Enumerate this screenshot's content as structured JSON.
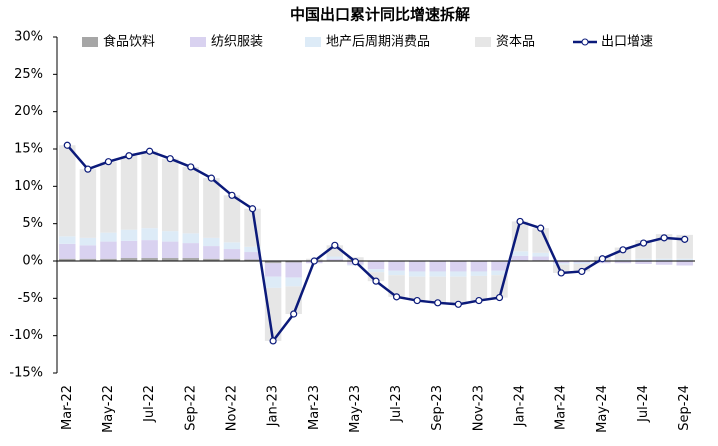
{
  "chart_data": {
    "type": "stacked-bar-line",
    "title": "中国出口累计同比增速拆解",
    "categories": [
      "Mar-22",
      null,
      "May-22",
      null,
      "Jul-22",
      null,
      "Sep-22",
      null,
      "Nov-22",
      null,
      "Jan-23",
      null,
      "Mar-23",
      null,
      "May-23",
      null,
      "Jul-23",
      null,
      "Sep-23",
      null,
      "Nov-23",
      null,
      "Jan-24",
      null,
      "Mar-24",
      null,
      "May-24",
      null,
      "Jul-24",
      null,
      "Sep-24"
    ],
    "ylim": [
      -15,
      30
    ],
    "yticks": [
      {
        "value": -15,
        "label": "-15%"
      },
      {
        "value": -10,
        "label": "-10%"
      },
      {
        "value": -5,
        "label": "-5%"
      },
      {
        "value": 0,
        "label": "0%"
      },
      {
        "value": 5,
        "label": "5%"
      },
      {
        "value": 10,
        "label": "10%"
      },
      {
        "value": 15,
        "label": "15%"
      },
      {
        "value": 20,
        "label": "20%"
      },
      {
        "value": 25,
        "label": "25%"
      },
      {
        "value": 30,
        "label": "30%"
      }
    ],
    "series": [
      {
        "name": "食品饮料",
        "color": "#a6a6a6",
        "values": [
          0.3,
          0.3,
          0.3,
          0.4,
          0.4,
          0.4,
          0.4,
          0.3,
          0.3,
          0.2,
          -0.3,
          -0.2,
          0.0,
          0.1,
          0.0,
          -0.1,
          -0.1,
          -0.1,
          -0.1,
          -0.1,
          -0.1,
          -0.1,
          0.1,
          0.1,
          0.0,
          0.0,
          0.0,
          0.0,
          0.0,
          0.0,
          0.0
        ]
      },
      {
        "name": "纺织服装",
        "color": "#d9d2f0",
        "values": [
          2.0,
          1.8,
          2.3,
          2.3,
          2.4,
          2.2,
          2.0,
          1.7,
          1.3,
          1.0,
          -1.8,
          -2.0,
          -0.3,
          0.2,
          -0.5,
          -1.0,
          -1.2,
          -1.3,
          -1.3,
          -1.3,
          -1.3,
          -1.2,
          0.6,
          0.5,
          -0.3,
          -0.2,
          -0.3,
          -0.3,
          -0.4,
          -0.5,
          -0.6
        ]
      },
      {
        "name": "地产后周期消费品",
        "color": "#ddebf7",
        "values": [
          1.0,
          1.0,
          1.2,
          1.5,
          1.6,
          1.4,
          1.3,
          1.1,
          0.9,
          0.7,
          -1.5,
          -1.2,
          0.1,
          0.3,
          -0.1,
          -0.4,
          -0.6,
          -0.7,
          -0.7,
          -0.7,
          -0.6,
          -0.6,
          0.6,
          0.5,
          -0.2,
          -0.2,
          0.1,
          0.2,
          0.3,
          0.3,
          0.3
        ]
      },
      {
        "name": "资本品",
        "color": "#e6e6e6",
        "values": [
          12.2,
          9.2,
          9.5,
          9.9,
          10.3,
          9.7,
          8.9,
          8.0,
          6.3,
          5.1,
          -7.1,
          -3.7,
          0.2,
          1.5,
          0.5,
          -1.2,
          -2.9,
          -3.2,
          -3.5,
          -3.7,
          -3.3,
          -3.0,
          4.0,
          3.3,
          -1.1,
          -1.0,
          0.5,
          1.6,
          2.5,
          3.3,
          3.2
        ]
      }
    ],
    "line_series": {
      "name": "出口增速",
      "color": "#0b1a7a",
      "values": [
        15.5,
        12.3,
        13.3,
        14.1,
        14.7,
        13.7,
        12.6,
        11.1,
        8.8,
        7.0,
        -10.7,
        -7.1,
        0.0,
        2.1,
        -0.1,
        -2.7,
        -4.8,
        -5.3,
        -5.6,
        -5.8,
        -5.3,
        -4.9,
        5.3,
        4.4,
        -1.6,
        -1.4,
        0.3,
        1.5,
        2.4,
        3.1,
        2.9
      ]
    }
  }
}
